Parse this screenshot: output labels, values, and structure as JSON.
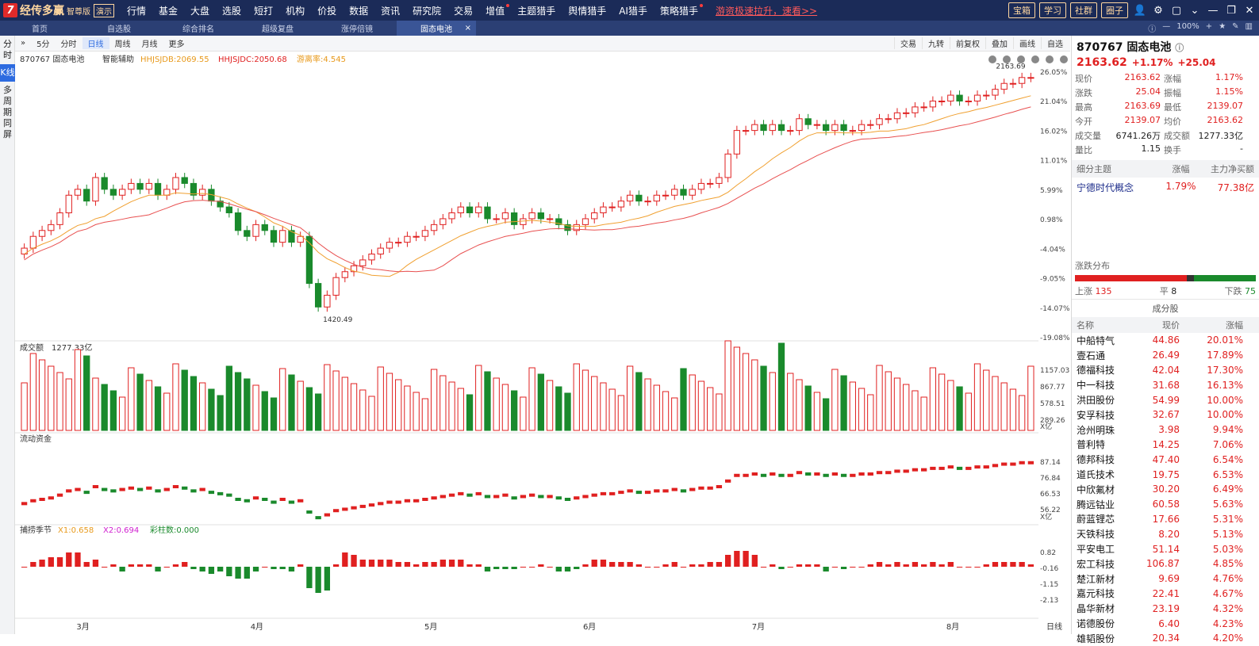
{
  "app": {
    "name": "经传多赢",
    "edition": "智尊版",
    "demo": "演示",
    "logo_letter": "7"
  },
  "menu": [
    "行情",
    "基金",
    "大盘",
    "选股",
    "短打",
    "机构",
    "价投",
    "数据",
    "资讯",
    "研究院",
    "交易",
    "增值",
    "主题猎手",
    "舆情猎手",
    "AI猎手",
    "策略猎手"
  ],
  "menu_hot": [
    "增值",
    "策略猎手"
  ],
  "ad_text": "游资极速拉升，速看>>",
  "top_buttons": [
    "宝箱",
    "学习",
    "社群",
    "圈子"
  ],
  "tabs": [
    {
      "label": "首页"
    },
    {
      "label": "自选股"
    },
    {
      "label": "综合排名"
    },
    {
      "label": "超级复盘"
    },
    {
      "label": "涨停倍镜"
    },
    {
      "label": "固态电池",
      "active": true
    }
  ],
  "zoom": "100%",
  "left_tabs": [
    "分时",
    "K线",
    "多周期同屏"
  ],
  "toolbar": {
    "left": [
      "5分",
      "分时",
      "日线",
      "周线",
      "月线",
      "更多"
    ],
    "active": "日线",
    "right": [
      "交易",
      "九转",
      "前复权",
      "叠加",
      "画线",
      "自选"
    ]
  },
  "chart_header": {
    "code_name": "870767 固态电池",
    "assist": "智能辅助",
    "ind1": "HHJSJDB:2069.55",
    "ind2": "HHJSJDC:2050.68",
    "ind3": "游离率:4.545"
  },
  "chart_data": {
    "type": "candlestick",
    "title": "870767 固态电池",
    "x_months": [
      "3月",
      "4月",
      "5月",
      "6月",
      "7月",
      "8月"
    ],
    "y_ticks": [
      "26.05%",
      "21.04%",
      "16.02%",
      "11.01%",
      "5.99%",
      "0.98%",
      "-4.04%",
      "-9.05%",
      "-14.07%",
      "-19.08%"
    ],
    "y_range_pct": [
      -19.08,
      26.05
    ],
    "annotations": {
      "high": "2163.69",
      "low": "1420.49"
    },
    "close_pct": [
      -4,
      -2,
      -1,
      0,
      2,
      5,
      6,
      4,
      8,
      6,
      5,
      6,
      7,
      6,
      7,
      5,
      6,
      8,
      7,
      5,
      6,
      4,
      3,
      2,
      -1,
      -2,
      0,
      -1,
      -3,
      -1,
      -3,
      -2,
      -10,
      -14,
      -12,
      -9,
      -8,
      -7,
      -6,
      -5,
      -4,
      -3,
      -3,
      -2,
      -2,
      -1,
      0,
      1,
      2,
      3,
      2,
      3,
      1,
      1,
      2,
      0,
      1,
      2,
      1,
      1,
      0,
      -1,
      0,
      1,
      2,
      3,
      3,
      4,
      5,
      4,
      4,
      5,
      5,
      6,
      5,
      6,
      7,
      7,
      8,
      12,
      16,
      16,
      17,
      16,
      17,
      16,
      16,
      18,
      17,
      17,
      16,
      17,
      16,
      16,
      17,
      17,
      18,
      18,
      19,
      19,
      20,
      20,
      21,
      21,
      22,
      21,
      21,
      22,
      22,
      23,
      24,
      24,
      25,
      25
    ],
    "volume_label": "成交额",
    "volume_value": "1277.33亿",
    "volume_ticks": [
      "1157.03",
      "867.77",
      "578.51",
      "289.26"
    ],
    "volume_unit": "X亿",
    "flow_label": "流动资金",
    "flow_ticks": [
      "87.14",
      "76.84",
      "66.53",
      "56.22"
    ],
    "flow_unit": "X亿",
    "osc_label": "捕捞季节",
    "osc_x1": "X1:0.658",
    "osc_x2": "X2:0.694",
    "osc_bar": "彩柱数:0.000",
    "osc_ticks": [
      "0.82",
      "-0.16",
      "-1.15",
      "-2.13"
    ],
    "period_label": "日线"
  },
  "quote": {
    "title": "870767 固态电池",
    "price": "2163.62",
    "change_pct": "+1.17%",
    "change": "+25.04",
    "rows": [
      [
        "现价",
        "2163.62",
        "涨幅",
        "1.17%"
      ],
      [
        "涨跌",
        "25.04",
        "振幅",
        "1.15%"
      ],
      [
        "最高",
        "2163.69",
        "最低",
        "2139.07"
      ],
      [
        "今开",
        "2139.07",
        "均价",
        "2163.62"
      ],
      [
        "成交量",
        "6741.26万",
        "成交额",
        "1277.33亿"
      ],
      [
        "量比",
        "1.15",
        "换手",
        "-"
      ]
    ]
  },
  "theme": {
    "headers": [
      "细分主题",
      "涨幅",
      "主力净买额"
    ],
    "name": "宁德时代概念",
    "pct": "1.79%",
    "net": "77.38亿"
  },
  "distribution": {
    "title": "涨跌分布",
    "up_label": "上涨",
    "up": "135",
    "flat_label": "平",
    "flat": "8",
    "down_label": "下跌",
    "down": "75"
  },
  "components": {
    "title": "成分股",
    "headers": [
      "名称",
      "现价",
      "涨幅"
    ],
    "rows": [
      [
        "中船特气",
        "44.86",
        "20.01%"
      ],
      [
        "壹石通",
        "26.49",
        "17.89%"
      ],
      [
        "德福科技",
        "42.04",
        "17.30%"
      ],
      [
        "中一科技",
        "31.68",
        "16.13%"
      ],
      [
        "洪田股份",
        "54.99",
        "10.00%"
      ],
      [
        "安孚科技",
        "32.67",
        "10.00%"
      ],
      [
        "沧州明珠",
        "3.98",
        "9.94%"
      ],
      [
        "普利特",
        "14.25",
        "7.06%"
      ],
      [
        "德邦科技",
        "47.40",
        "6.54%"
      ],
      [
        "道氏技术",
        "19.75",
        "6.53%"
      ],
      [
        "中欣氟材",
        "30.20",
        "6.49%"
      ],
      [
        "腾远钴业",
        "60.58",
        "5.63%"
      ],
      [
        "蔚蓝锂芯",
        "17.66",
        "5.31%"
      ],
      [
        "天铁科技",
        "8.20",
        "5.13%"
      ],
      [
        "平安电工",
        "51.14",
        "5.03%"
      ],
      [
        "宏工科技",
        "106.87",
        "4.85%"
      ],
      [
        "楚江新材",
        "9.69",
        "4.76%"
      ],
      [
        "嘉元科技",
        "22.41",
        "4.67%"
      ],
      [
        "晶华新材",
        "23.19",
        "4.32%"
      ],
      [
        "诺德股份",
        "6.40",
        "4.23%"
      ],
      [
        "雄韬股份",
        "20.34",
        "4.20%"
      ]
    ]
  }
}
